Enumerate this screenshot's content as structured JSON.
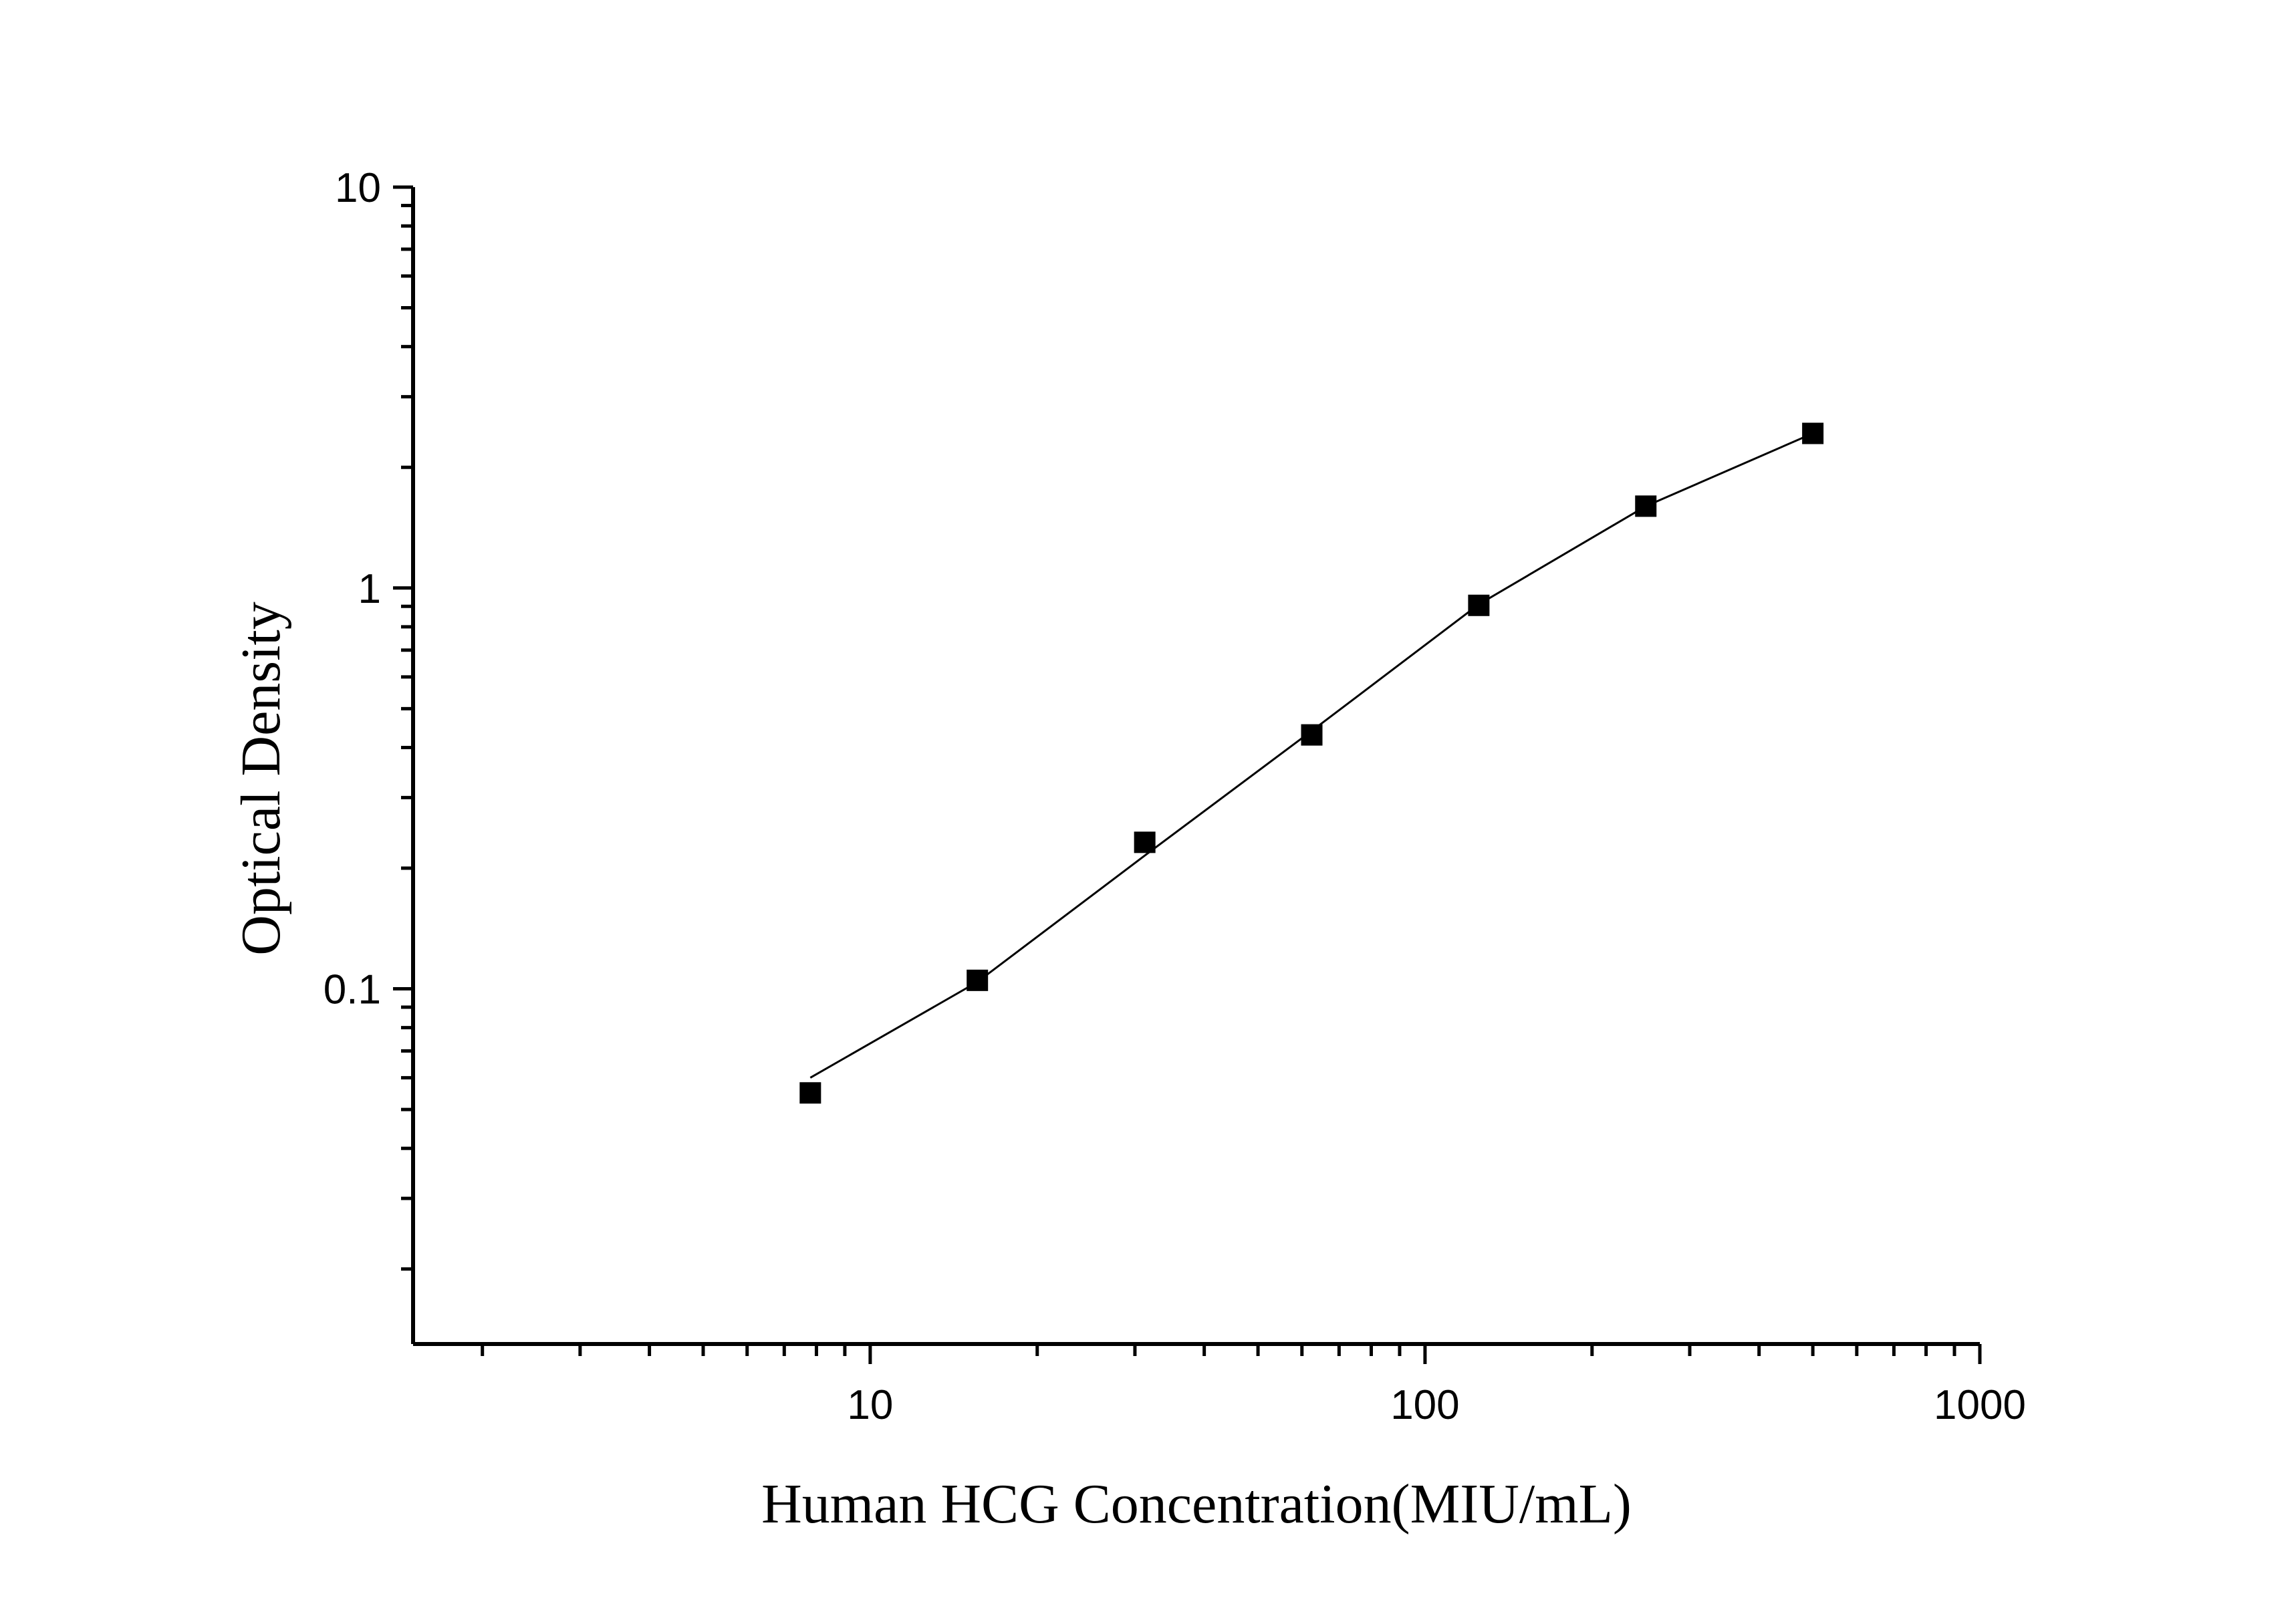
{
  "chart_data": {
    "type": "scatter",
    "title": "",
    "xlabel": "Human HCG Concentration(MIU/mL)",
    "ylabel": "Optical Density",
    "xscale": "log",
    "yscale": "log",
    "xlim": [
      1.5,
      1000
    ],
    "ylim": [
      0.013,
      10
    ],
    "x_ticks": [
      "10",
      "100",
      "1000"
    ],
    "y_ticks": [
      "0.1",
      "1",
      "10"
    ],
    "grid": false,
    "legend": "none",
    "marker": "square",
    "color": "#000000",
    "series": [
      {
        "x": [
          7.8,
          15.6,
          31.25,
          62.5,
          125,
          250,
          500
        ],
        "values": [
          0.055,
          0.105,
          0.232,
          0.43,
          0.905,
          1.6,
          2.43
        ]
      }
    ],
    "fit_curve": {
      "x": [
        7.8,
        15.6,
        31.25,
        62.5,
        125,
        250,
        500
      ],
      "values": [
        0.06,
        0.104,
        0.215,
        0.44,
        0.91,
        1.6,
        2.43
      ]
    }
  }
}
